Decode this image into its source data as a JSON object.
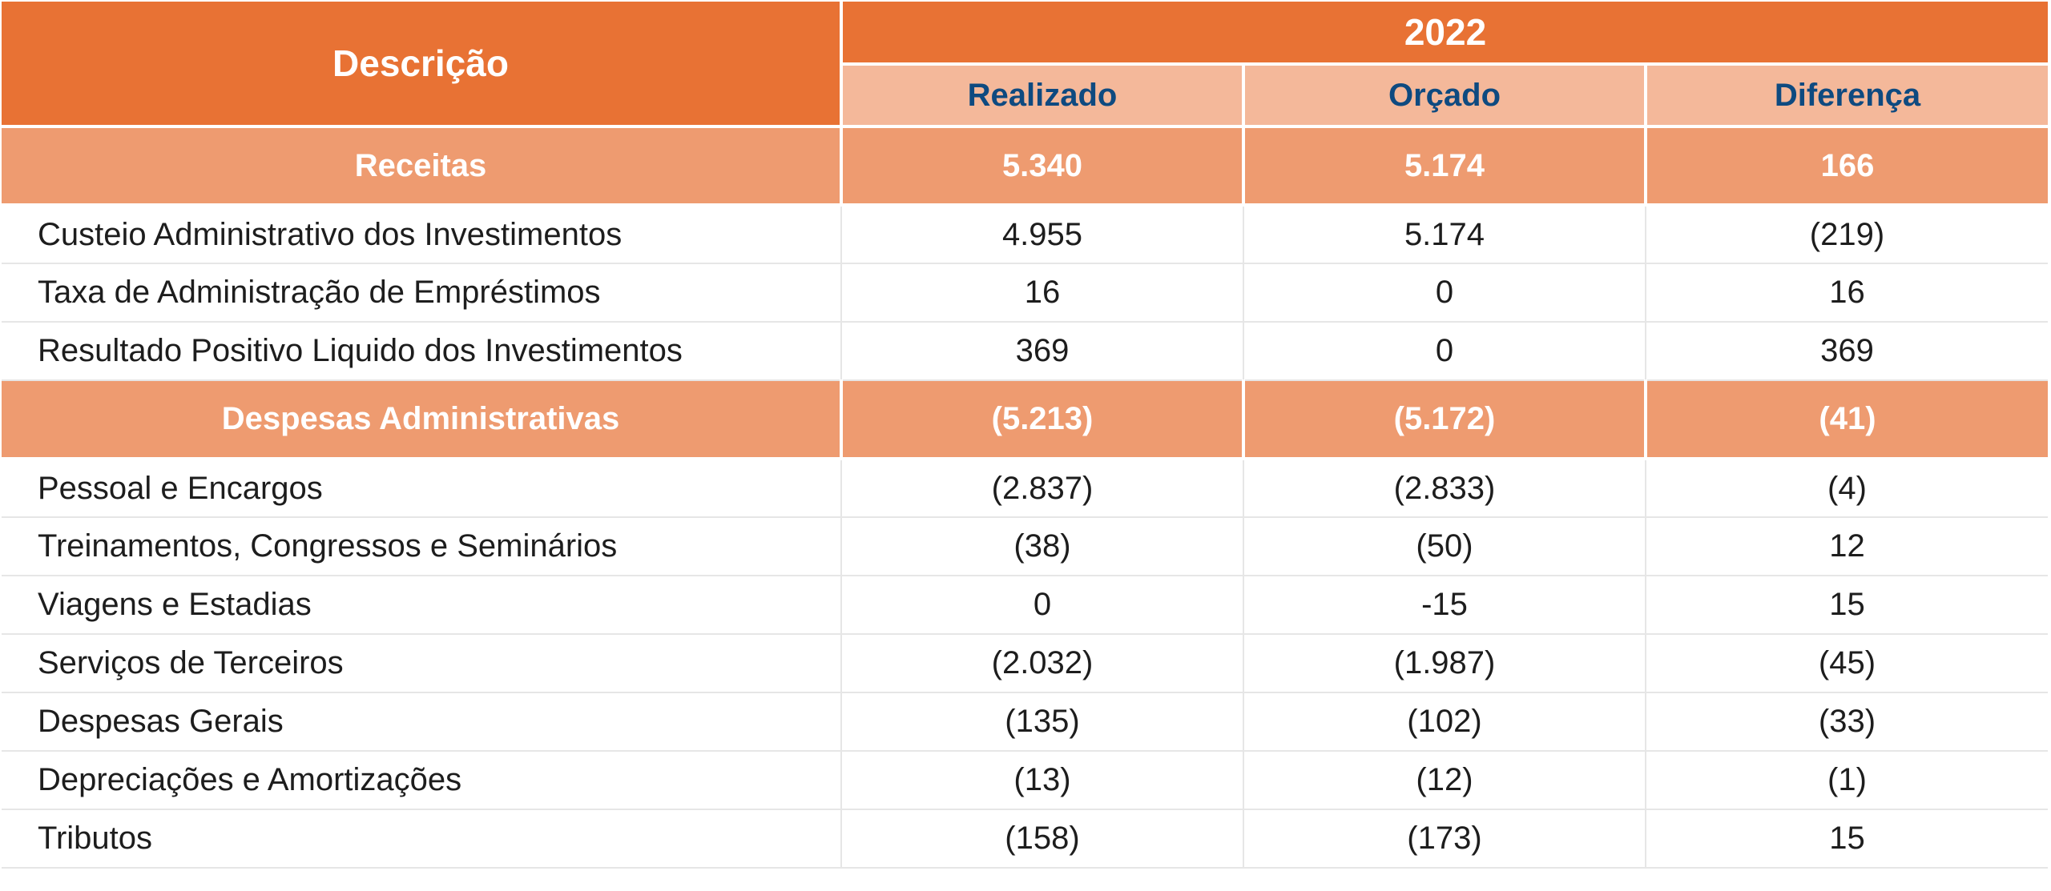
{
  "header": {
    "description_label": "Descrição",
    "year_label": "2022",
    "columns": [
      "Realizado",
      "Orçado",
      "Diferença"
    ]
  },
  "sections": [
    {
      "title": "Receitas",
      "values": [
        "5.340",
        "5.174",
        "166"
      ],
      "rows": [
        {
          "label": "Custeio Administrativo dos Investimentos",
          "values": [
            "4.955",
            "5.174",
            "(219)"
          ]
        },
        {
          "label": "Taxa de Administração de Empréstimos",
          "values": [
            "16",
            "0",
            "16"
          ]
        },
        {
          "label": "Resultado Positivo Liquido dos Investimentos",
          "values": [
            "369",
            "0",
            "369"
          ]
        }
      ]
    },
    {
      "title": "Despesas Administrativas",
      "values": [
        "(5.213)",
        "(5.172)",
        "(41)"
      ],
      "rows": [
        {
          "label": "Pessoal e Encargos",
          "values": [
            "(2.837)",
            "(2.833)",
            "(4)"
          ]
        },
        {
          "label": "Treinamentos, Congressos e Seminários",
          "values": [
            "(38)",
            "(50)",
            "12"
          ]
        },
        {
          "label": "Viagens e Estadias",
          "values": [
            "0",
            "-15",
            "15"
          ]
        },
        {
          "label": "Serviços de Terceiros",
          "values": [
            "(2.032)",
            "(1.987)",
            "(45)"
          ]
        },
        {
          "label": "Despesas Gerais",
          "values": [
            "(135)",
            "(102)",
            "(33)"
          ]
        },
        {
          "label": "Depreciações e Amortizações",
          "values": [
            "(13)",
            "(12)",
            "(1)"
          ]
        },
        {
          "label": "Tributos",
          "values": [
            "(158)",
            "(173)",
            "15"
          ]
        }
      ]
    }
  ],
  "colors": {
    "header_dark_orange": "#e87234",
    "header_light_orange": "#f4b89a",
    "section_orange": "#ee9b70",
    "subheader_text_blue": "#0e4a80"
  }
}
